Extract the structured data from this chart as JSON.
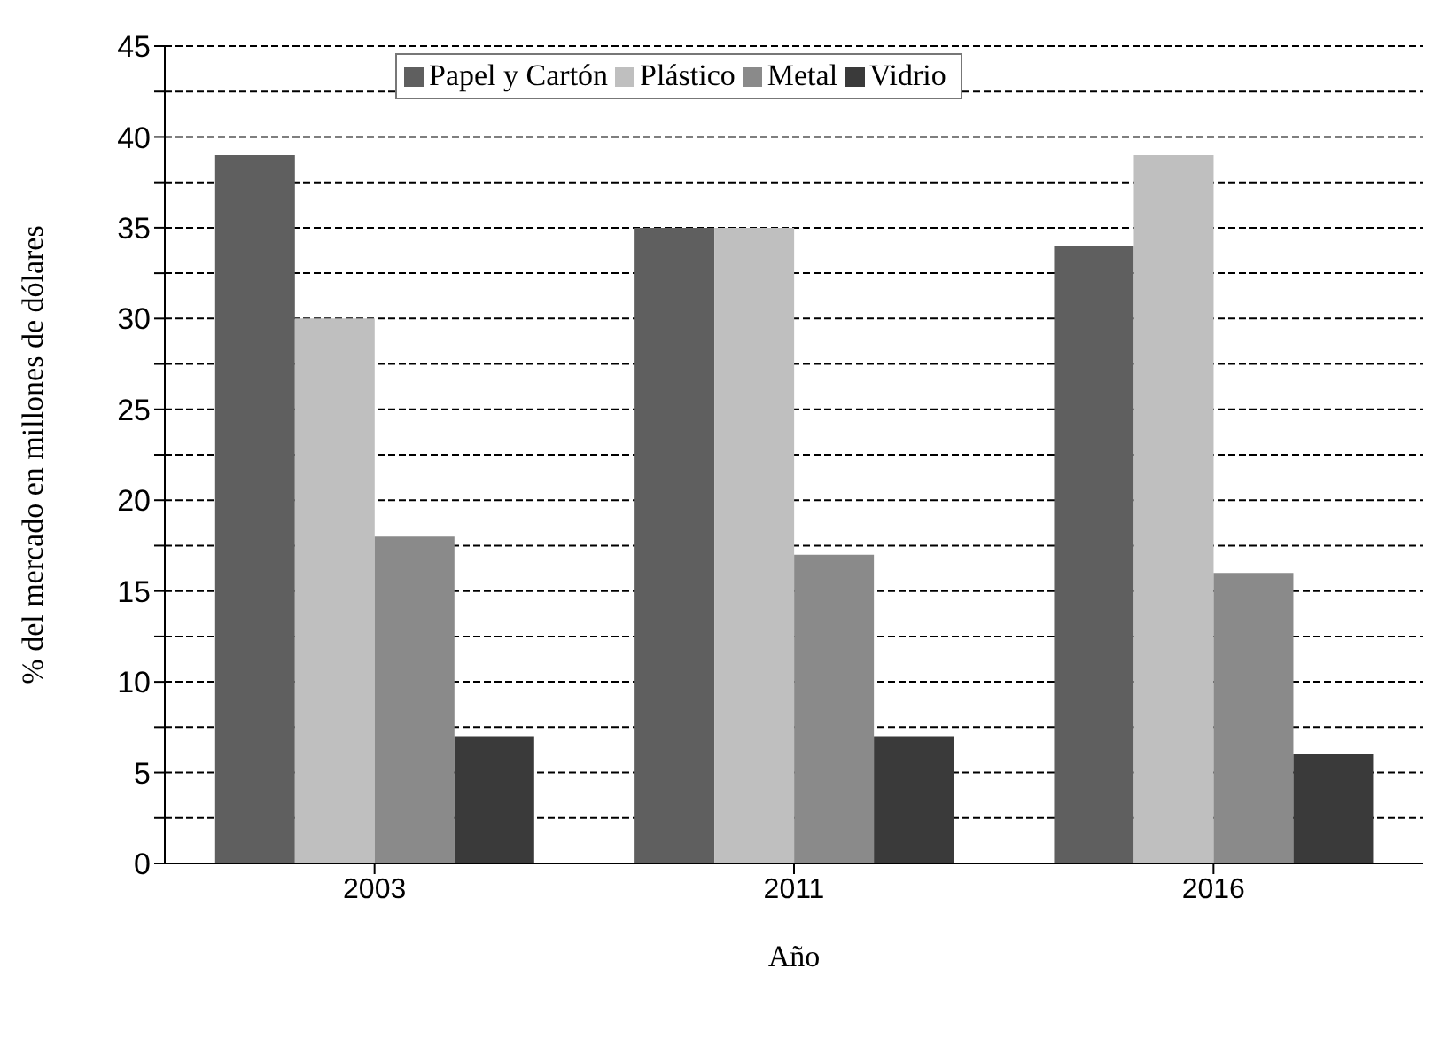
{
  "chart_data": {
    "type": "bar",
    "xlabel": "Año",
    "ylabel": "% del mercado en millones de dólares",
    "categories": [
      "2003",
      "2011",
      "2016"
    ],
    "series": [
      {
        "name": "Papel y Cartón",
        "color": "#5f5f5f",
        "values": [
          39,
          35,
          34
        ]
      },
      {
        "name": "Plástico",
        "color": "#bfbfbf",
        "values": [
          30,
          35,
          39
        ]
      },
      {
        "name": "Metal",
        "color": "#8a8a8a",
        "values": [
          18,
          17,
          16
        ]
      },
      {
        "name": "Vidrio",
        "color": "#3a3a3a",
        "values": [
          7,
          7,
          6
        ]
      }
    ],
    "ylim": [
      0,
      45
    ],
    "yticks": [
      0,
      {
        "value": 2.5,
        "label": null
      },
      5,
      {
        "value": 7.5,
        "label": null
      },
      10,
      {
        "value": 12.5,
        "label": null
      },
      15,
      {
        "value": 17.5,
        "label": null
      },
      20,
      {
        "value": 22.5,
        "label": null
      },
      25,
      {
        "value": 27.5,
        "label": null
      },
      30,
      {
        "value": 32.5,
        "label": null
      },
      35,
      {
        "value": 37.5,
        "label": null
      },
      40,
      {
        "value": 42.5,
        "label": null
      },
      45
    ],
    "grid": "y",
    "legend": "top"
  }
}
